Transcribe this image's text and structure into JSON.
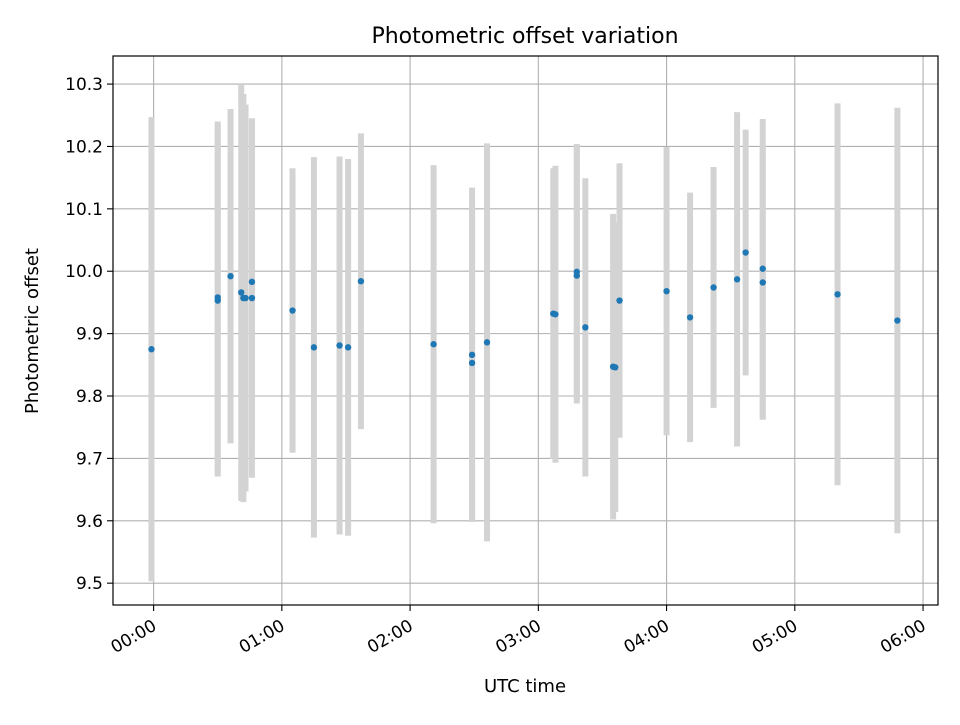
{
  "chart_data": {
    "type": "scatter",
    "title": "Photometric offset variation",
    "xlabel": "UTC time",
    "ylabel": "Photometric offset",
    "x_ticks": [
      "00:00",
      "01:00",
      "02:00",
      "03:00",
      "04:00",
      "05:00",
      "06:00"
    ],
    "y_ticks": [
      "9.5",
      "9.6",
      "9.7",
      "9.8",
      "9.9",
      "10.0",
      "10.1",
      "10.2",
      "10.3"
    ],
    "xlim": [
      "23:41",
      "06:07"
    ],
    "ylim": [
      9.465,
      10.345
    ],
    "grid": true,
    "legend": "none",
    "colors": {
      "point": "#1f77b4",
      "errorbar": "#d3d3d3",
      "grid": "#b0b0b0"
    },
    "series": [
      {
        "points": [
          {
            "x": "23:59",
            "y": 9.875,
            "err": 0.372
          },
          {
            "x": "00:30",
            "y": 9.958,
            "err": 0.282
          },
          {
            "x": "00:30",
            "y": 9.953,
            "err": 0.282
          },
          {
            "x": "00:36",
            "y": 9.992,
            "err": 0.268
          },
          {
            "x": "00:41",
            "y": 9.966,
            "err": 0.334
          },
          {
            "x": "00:42",
            "y": 9.957,
            "err": 0.327
          },
          {
            "x": "00:43",
            "y": 9.957,
            "err": 0.31
          },
          {
            "x": "00:46",
            "y": 9.983,
            "err": 0.262
          },
          {
            "x": "00:46",
            "y": 9.957,
            "err": 0.288
          },
          {
            "x": "01:05",
            "y": 9.937,
            "err": 0.228
          },
          {
            "x": "01:15",
            "y": 9.878,
            "err": 0.305
          },
          {
            "x": "01:27",
            "y": 9.881,
            "err": 0.303
          },
          {
            "x": "01:31",
            "y": 9.878,
            "err": 0.302
          },
          {
            "x": "01:37",
            "y": 9.984,
            "err": 0.237
          },
          {
            "x": "02:11",
            "y": 9.883,
            "err": 0.287
          },
          {
            "x": "02:29",
            "y": 9.866,
            "err": 0.268
          },
          {
            "x": "02:29",
            "y": 9.853,
            "err": 0.253
          },
          {
            "x": "02:36",
            "y": 9.886,
            "err": 0.319
          },
          {
            "x": "03:07",
            "y": 9.932,
            "err": 0.233
          },
          {
            "x": "03:08",
            "y": 9.931,
            "err": 0.238
          },
          {
            "x": "03:18",
            "y": 9.999,
            "err": 0.205
          },
          {
            "x": "03:18",
            "y": 9.993,
            "err": 0.205
          },
          {
            "x": "03:22",
            "y": 9.91,
            "err": 0.239
          },
          {
            "x": "03:35",
            "y": 9.847,
            "err": 0.245
          },
          {
            "x": "03:36",
            "y": 9.846,
            "err": 0.232
          },
          {
            "x": "03:38",
            "y": 9.953,
            "err": 0.22
          },
          {
            "x": "04:00",
            "y": 9.968,
            "err": 0.231
          },
          {
            "x": "04:11",
            "y": 9.926,
            "err": 0.2
          },
          {
            "x": "04:22",
            "y": 9.974,
            "err": 0.193
          },
          {
            "x": "04:33",
            "y": 9.987,
            "err": 0.268
          },
          {
            "x": "04:37",
            "y": 10.03,
            "err": 0.197
          },
          {
            "x": "04:45",
            "y": 10.004,
            "err": 0.24
          },
          {
            "x": "04:45",
            "y": 9.982,
            "err": 0.22
          },
          {
            "x": "05:20",
            "y": 9.963,
            "err": 0.306
          },
          {
            "x": "05:48",
            "y": 9.921,
            "err": 0.341
          }
        ]
      }
    ]
  }
}
